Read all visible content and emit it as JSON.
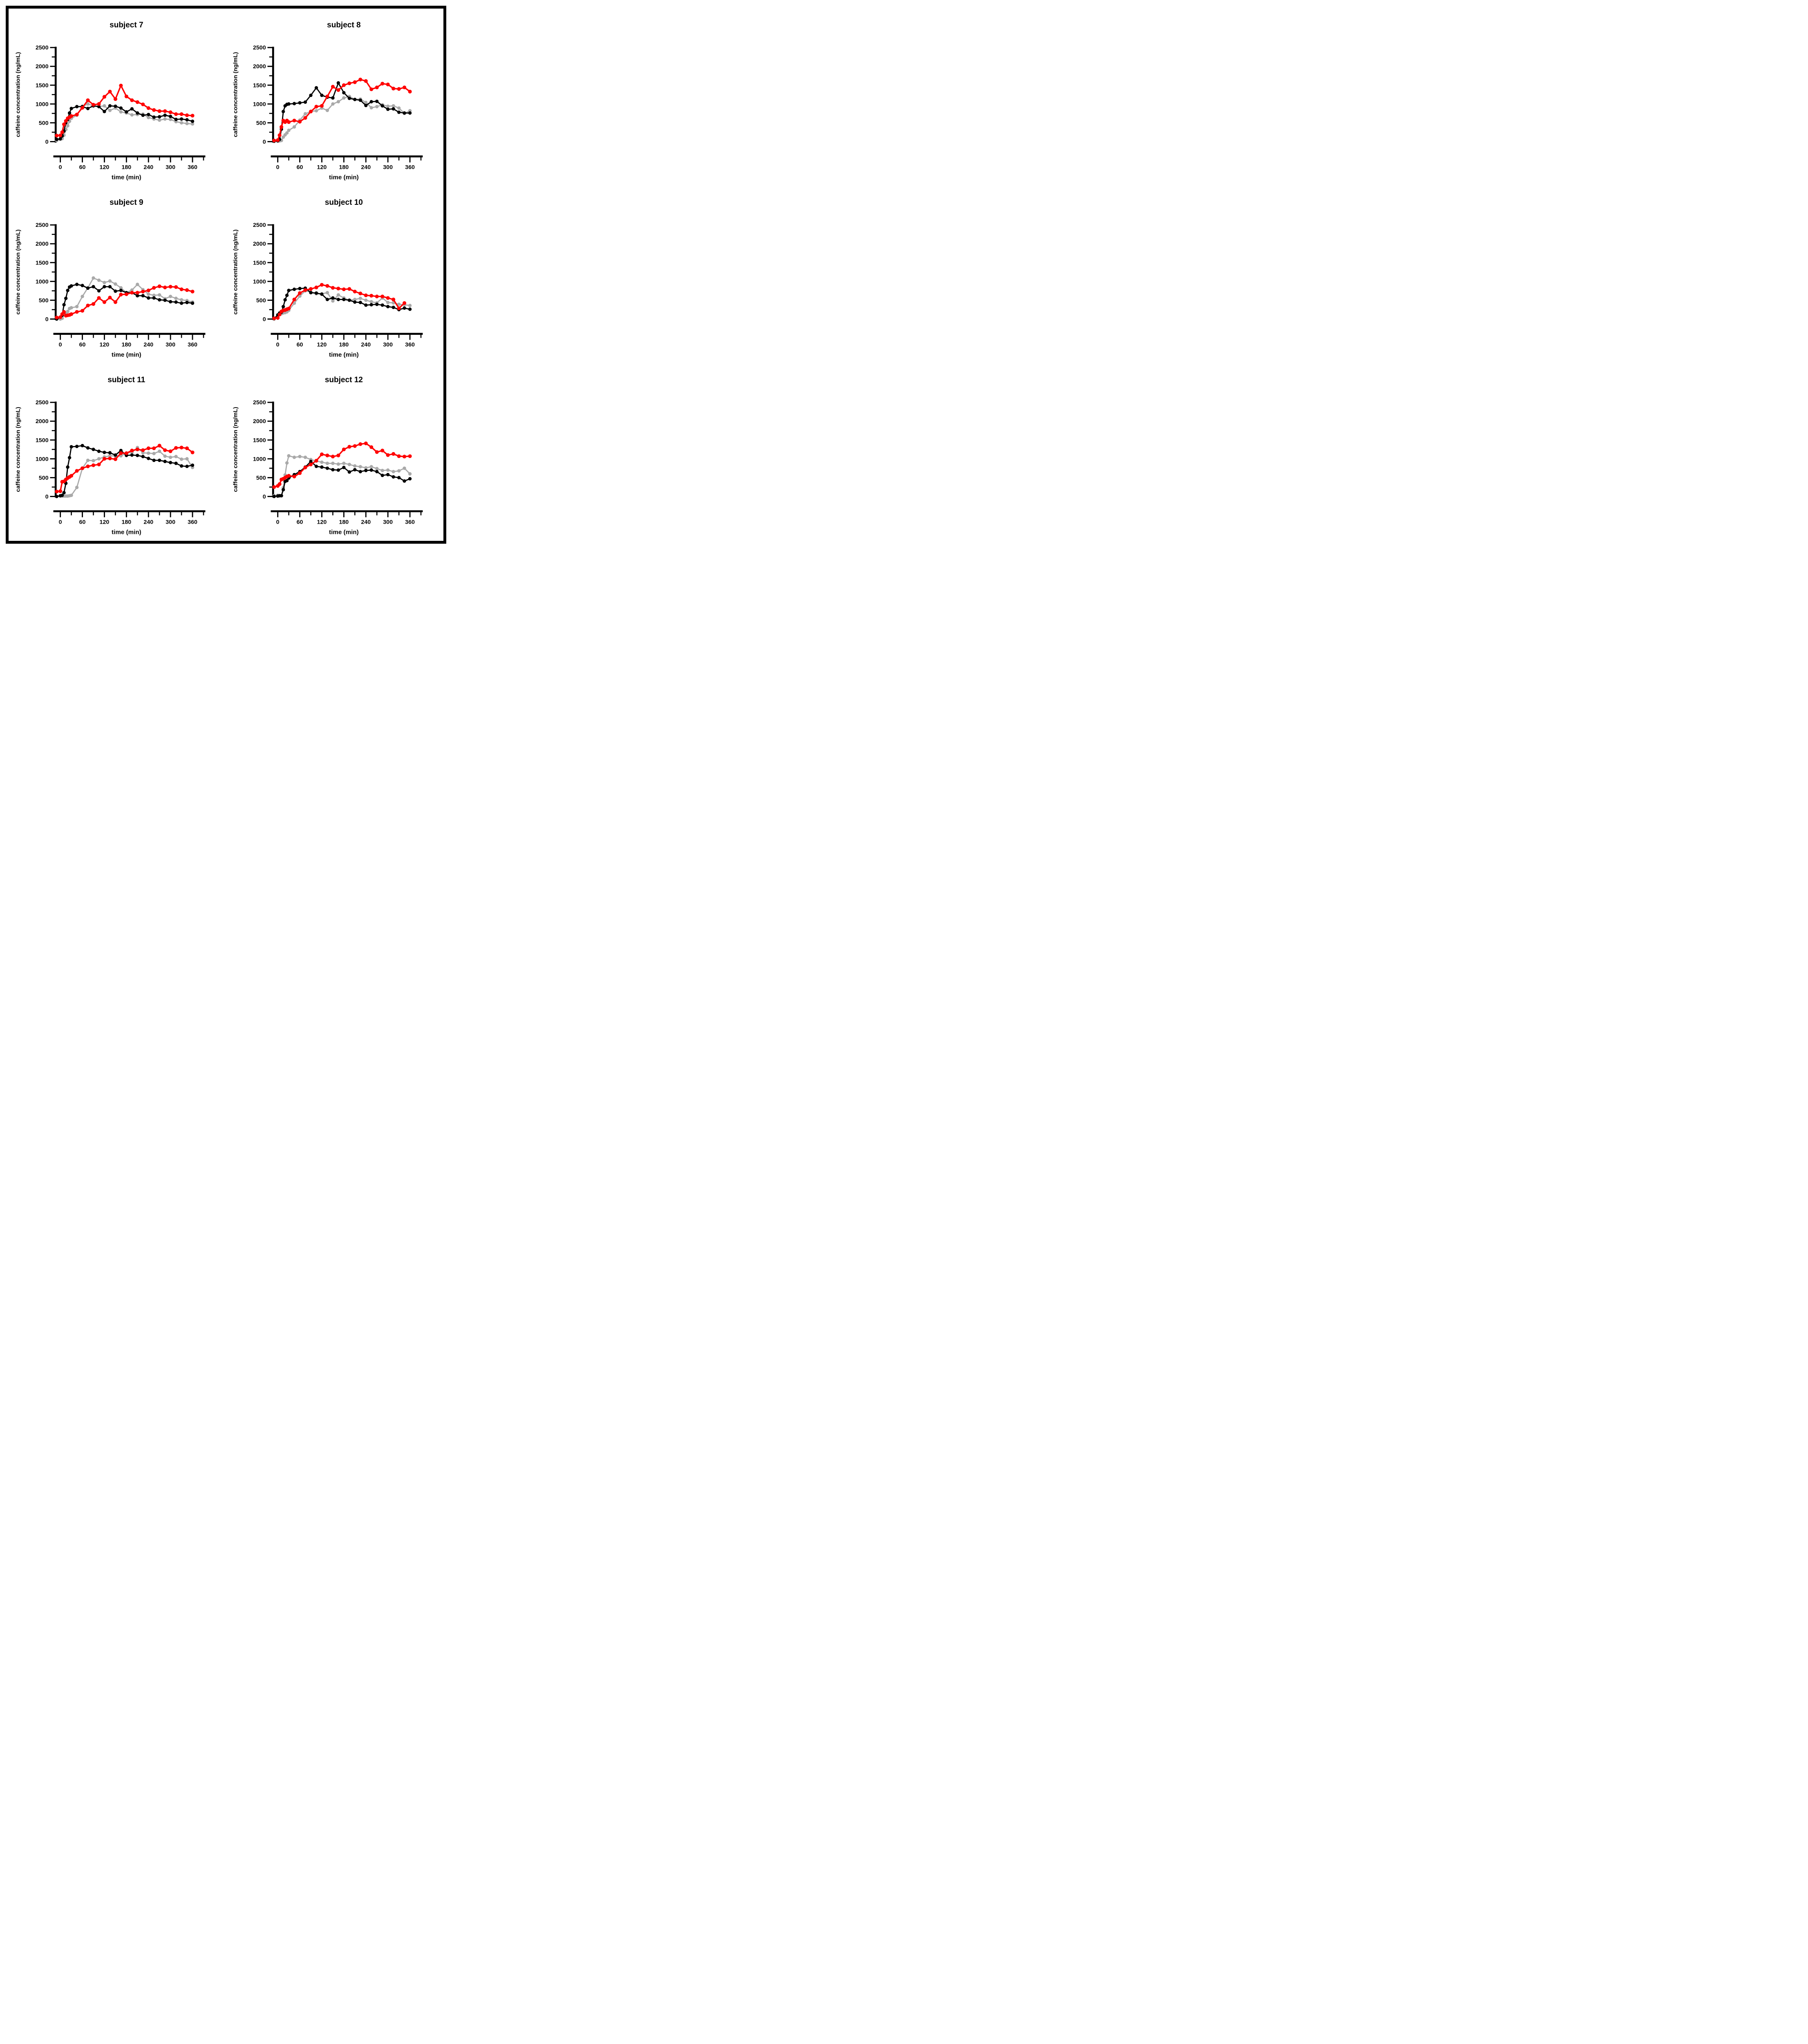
{
  "figure": {
    "background_color": "#ffffff",
    "border_color": "#000000",
    "series_colors": {
      "black": "#000000",
      "red": "#ff0000",
      "gray": "#a9a9a9"
    }
  },
  "chart_data": [
    {
      "type": "line",
      "title": "subject 7",
      "xlabel": "time (min)",
      "ylabel": "caffeine concentration (ng/mL)",
      "xlim": [
        -20,
        400
      ],
      "ylim": [
        0,
        2500
      ],
      "xticks": [
        0,
        60,
        120,
        180,
        240,
        300,
        360
      ],
      "xminor_ticks": [
        30,
        90,
        150,
        210,
        270,
        330,
        390
      ],
      "yticks": [
        0,
        500,
        1000,
        1500,
        2000,
        2500
      ],
      "yminor_ticks": [
        250,
        750,
        1250,
        1750,
        2250
      ],
      "grid": false,
      "legend": false,
      "x": [
        -10,
        0,
        5,
        10,
        15,
        20,
        25,
        30,
        45,
        60,
        75,
        90,
        105,
        120,
        135,
        150,
        165,
        180,
        195,
        210,
        225,
        240,
        255,
        270,
        285,
        300,
        315,
        330,
        345,
        360
      ],
      "series": [
        {
          "name": "gray-series",
          "color": "#a9a9a9",
          "values": [
            30,
            60,
            80,
            170,
            320,
            420,
            540,
            620,
            700,
            940,
            1000,
            950,
            930,
            950,
            830,
            890,
            790,
            760,
            710,
            720,
            730,
            640,
            600,
            570,
            600,
            590,
            530,
            500,
            480,
            470
          ]
        },
        {
          "name": "black-series",
          "color": "#000000",
          "values": [
            60,
            75,
            150,
            280,
            500,
            590,
            760,
            880,
            930,
            930,
            880,
            950,
            930,
            800,
            950,
            940,
            890,
            790,
            870,
            760,
            700,
            720,
            650,
            660,
            700,
            670,
            590,
            600,
            580,
            540
          ]
        },
        {
          "name": "red-series",
          "color": "#ff0000",
          "values": [
            160,
            165,
            250,
            460,
            550,
            620,
            650,
            680,
            720,
            900,
            1100,
            980,
            1000,
            1190,
            1330,
            1130,
            1490,
            1200,
            1100,
            1050,
            990,
            890,
            840,
            810,
            810,
            780,
            730,
            730,
            700,
            690
          ]
        }
      ]
    },
    {
      "type": "line",
      "title": "subject 8",
      "xlabel": "time (min)",
      "ylabel": "caffeine concentration (ng/mL)",
      "xlim": [
        -20,
        400
      ],
      "ylim": [
        0,
        2500
      ],
      "xticks": [
        0,
        60,
        120,
        180,
        240,
        300,
        360
      ],
      "xminor_ticks": [
        30,
        90,
        150,
        210,
        270,
        330,
        390
      ],
      "yticks": [
        0,
        500,
        1000,
        1500,
        2000,
        2500
      ],
      "yminor_ticks": [
        250,
        750,
        1250,
        1750,
        2250
      ],
      "grid": false,
      "legend": false,
      "x": [
        -10,
        0,
        5,
        10,
        15,
        20,
        25,
        30,
        45,
        60,
        75,
        90,
        105,
        120,
        135,
        150,
        165,
        180,
        195,
        210,
        225,
        240,
        255,
        270,
        285,
        300,
        315,
        330,
        345,
        360
      ],
      "series": [
        {
          "name": "gray-series",
          "color": "#a9a9a9",
          "values": [
            10,
            20,
            20,
            30,
            120,
            180,
            230,
            300,
            390,
            570,
            740,
            800,
            820,
            890,
            830,
            1000,
            1060,
            1160,
            1200,
            1120,
            1130,
            1040,
            900,
            930,
            980,
            940,
            950,
            890,
            750,
            820
          ]
        },
        {
          "name": "black-series",
          "color": "#000000",
          "values": [
            10,
            20,
            60,
            330,
            800,
            950,
            990,
            1000,
            1010,
            1030,
            1050,
            1230,
            1430,
            1230,
            1180,
            1160,
            1560,
            1300,
            1150,
            1120,
            1100,
            960,
            1060,
            1070,
            950,
            860,
            870,
            780,
            760,
            760
          ]
        },
        {
          "name": "red-series",
          "color": "#ff0000",
          "values": [
            30,
            40,
            170,
            390,
            560,
            520,
            560,
            520,
            560,
            530,
            630,
            800,
            930,
            950,
            1200,
            1460,
            1370,
            1500,
            1550,
            1580,
            1650,
            1610,
            1390,
            1440,
            1540,
            1520,
            1410,
            1400,
            1440,
            1330
          ]
        }
      ]
    },
    {
      "type": "line",
      "title": "subject 9",
      "xlabel": "time (min)",
      "ylabel": "caffeine concentration (ng/mL)",
      "xlim": [
        -20,
        400
      ],
      "ylim": [
        0,
        2500
      ],
      "xticks": [
        0,
        60,
        120,
        180,
        240,
        300,
        360
      ],
      "xminor_ticks": [
        30,
        90,
        150,
        210,
        270,
        330,
        390
      ],
      "yticks": [
        0,
        500,
        1000,
        1500,
        2000,
        2500
      ],
      "yminor_ticks": [
        250,
        750,
        1250,
        1750,
        2250
      ],
      "grid": false,
      "legend": false,
      "x": [
        -10,
        0,
        5,
        10,
        15,
        20,
        25,
        30,
        45,
        60,
        75,
        90,
        105,
        120,
        135,
        150,
        165,
        180,
        195,
        210,
        225,
        240,
        255,
        270,
        285,
        300,
        315,
        330,
        345,
        360
      ],
      "series": [
        {
          "name": "gray-series",
          "color": "#a9a9a9",
          "values": [
            0,
            0,
            20,
            120,
            140,
            200,
            280,
            300,
            330,
            600,
            830,
            1090,
            1030,
            970,
            1010,
            930,
            830,
            700,
            770,
            920,
            780,
            660,
            630,
            640,
            540,
            600,
            550,
            510,
            490,
            450
          ]
        },
        {
          "name": "black-series",
          "color": "#000000",
          "values": [
            0,
            50,
            100,
            380,
            550,
            760,
            850,
            880,
            920,
            890,
            820,
            860,
            750,
            860,
            860,
            740,
            760,
            700,
            700,
            620,
            620,
            560,
            560,
            510,
            500,
            460,
            450,
            420,
            440,
            420
          ]
        },
        {
          "name": "red-series",
          "color": "#ff0000",
          "values": [
            40,
            50,
            130,
            190,
            90,
            100,
            110,
            130,
            190,
            220,
            360,
            400,
            560,
            450,
            570,
            450,
            650,
            660,
            700,
            700,
            730,
            760,
            830,
            870,
            840,
            860,
            850,
            790,
            770,
            730
          ]
        }
      ]
    },
    {
      "type": "line",
      "title": "subject 10",
      "xlabel": "time (min)",
      "ylabel": "caffeine concentration (ng/mL)",
      "xlim": [
        -20,
        400
      ],
      "ylim": [
        0,
        2500
      ],
      "xticks": [
        0,
        60,
        120,
        180,
        240,
        300,
        360
      ],
      "xminor_ticks": [
        30,
        90,
        150,
        210,
        270,
        330,
        390
      ],
      "yticks": [
        0,
        500,
        1000,
        1500,
        2000,
        2500
      ],
      "yminor_ticks": [
        250,
        750,
        1250,
        1750,
        2250
      ],
      "grid": false,
      "legend": false,
      "x": [
        -10,
        0,
        5,
        10,
        15,
        20,
        25,
        30,
        45,
        60,
        75,
        90,
        105,
        120,
        135,
        150,
        165,
        180,
        195,
        210,
        225,
        240,
        255,
        270,
        285,
        300,
        315,
        330,
        345,
        360
      ],
      "series": [
        {
          "name": "gray-series",
          "color": "#a9a9a9",
          "values": [
            0,
            100,
            130,
            140,
            160,
            170,
            190,
            230,
            420,
            610,
            750,
            720,
            670,
            670,
            700,
            480,
            640,
            560,
            500,
            520,
            550,
            500,
            460,
            430,
            560,
            440,
            430,
            390,
            380,
            360
          ]
        },
        {
          "name": "black-series",
          "color": "#000000",
          "values": [
            10,
            110,
            160,
            180,
            330,
            510,
            630,
            760,
            790,
            810,
            820,
            700,
            690,
            660,
            520,
            560,
            520,
            520,
            500,
            450,
            440,
            370,
            380,
            390,
            370,
            330,
            310,
            250,
            290,
            260
          ]
        },
        {
          "name": "red-series",
          "color": "#ff0000",
          "values": [
            20,
            30,
            120,
            200,
            230,
            240,
            260,
            280,
            520,
            690,
            770,
            800,
            840,
            910,
            880,
            830,
            810,
            790,
            800,
            730,
            680,
            630,
            620,
            600,
            600,
            560,
            520,
            285,
            425,
            null
          ]
        }
      ]
    },
    {
      "type": "line",
      "title": "subject 11",
      "xlabel": "time (min)",
      "ylabel": "caffeine concentration (ng/mL)",
      "xlim": [
        -20,
        400
      ],
      "ylim": [
        0,
        2500
      ],
      "xticks": [
        0,
        60,
        120,
        180,
        240,
        300,
        360
      ],
      "xminor_ticks": [
        30,
        90,
        150,
        210,
        270,
        330,
        390
      ],
      "yticks": [
        0,
        500,
        1000,
        1500,
        2000,
        2500
      ],
      "yminor_ticks": [
        250,
        750,
        1250,
        1750,
        2250
      ],
      "grid": false,
      "legend": false,
      "x": [
        -10,
        0,
        5,
        10,
        15,
        20,
        25,
        30,
        45,
        60,
        75,
        90,
        105,
        120,
        135,
        150,
        165,
        180,
        195,
        210,
        225,
        240,
        255,
        270,
        285,
        300,
        315,
        330,
        345,
        360
      ],
      "series": [
        {
          "name": "gray-series",
          "color": "#a9a9a9",
          "values": [
            0,
            10,
            10,
            10,
            10,
            10,
            20,
            30,
            240,
            750,
            960,
            950,
            1000,
            1050,
            1080,
            1080,
            1080,
            1150,
            1170,
            1300,
            1160,
            1150,
            1140,
            1200,
            1070,
            1040,
            1060,
            990,
            1000,
            770
          ]
        },
        {
          "name": "black-series",
          "color": "#000000",
          "values": [
            0,
            20,
            30,
            100,
            350,
            780,
            1030,
            1320,
            1330,
            1350,
            1290,
            1250,
            1200,
            1170,
            1160,
            1100,
            1220,
            1090,
            1100,
            1090,
            1060,
            1010,
            960,
            960,
            930,
            900,
            880,
            810,
            800,
            830
          ]
        },
        {
          "name": "red-series",
          "color": "#ff0000",
          "values": [
            130,
            140,
            390,
            400,
            450,
            490,
            520,
            550,
            680,
            750,
            800,
            830,
            850,
            1000,
            1010,
            990,
            1150,
            1150,
            1220,
            1250,
            1230,
            1280,
            1280,
            1350,
            1230,
            1200,
            1290,
            1300,
            1280,
            1170
          ]
        }
      ]
    },
    {
      "type": "line",
      "title": "subject 12",
      "xlabel": "time (min)",
      "ylabel": "caffeine concentration (ng/mL)",
      "xlim": [
        -20,
        400
      ],
      "ylim": [
        0,
        2500
      ],
      "xticks": [
        0,
        60,
        120,
        180,
        240,
        300,
        360
      ],
      "xminor_ticks": [
        30,
        90,
        150,
        210,
        270,
        330,
        390
      ],
      "yticks": [
        0,
        500,
        1000,
        1500,
        2000,
        2500
      ],
      "yminor_ticks": [
        250,
        750,
        1250,
        1750,
        2250
      ],
      "grid": false,
      "legend": false,
      "x": [
        -10,
        0,
        5,
        10,
        15,
        20,
        25,
        30,
        45,
        60,
        75,
        90,
        105,
        120,
        135,
        150,
        165,
        180,
        195,
        210,
        225,
        240,
        255,
        270,
        285,
        300,
        315,
        330,
        345,
        360
      ],
      "series": [
        {
          "name": "gray-series",
          "color": "#a9a9a9",
          "values": [
            20,
            30,
            20,
            20,
            230,
            570,
            890,
            1080,
            1040,
            1060,
            1040,
            980,
            940,
            910,
            880,
            880,
            860,
            880,
            850,
            810,
            790,
            760,
            790,
            740,
            690,
            700,
            660,
            680,
            750,
            600
          ]
        },
        {
          "name": "black-series",
          "color": "#000000",
          "values": [
            0,
            10,
            20,
            20,
            180,
            400,
            420,
            490,
            580,
            660,
            780,
            930,
            800,
            780,
            750,
            710,
            700,
            770,
            650,
            710,
            660,
            690,
            700,
            660,
            560,
            580,
            520,
            500,
            410,
            470
          ]
        },
        {
          "name": "red-series",
          "color": "#ff0000",
          "values": [
            250,
            280,
            330,
            450,
            470,
            500,
            530,
            550,
            530,
            620,
            770,
            850,
            950,
            1120,
            1090,
            1060,
            1090,
            1250,
            1320,
            1340,
            1390,
            1410,
            1310,
            1180,
            1220,
            1100,
            1130,
            1070,
            1060,
            1070
          ]
        }
      ]
    }
  ]
}
